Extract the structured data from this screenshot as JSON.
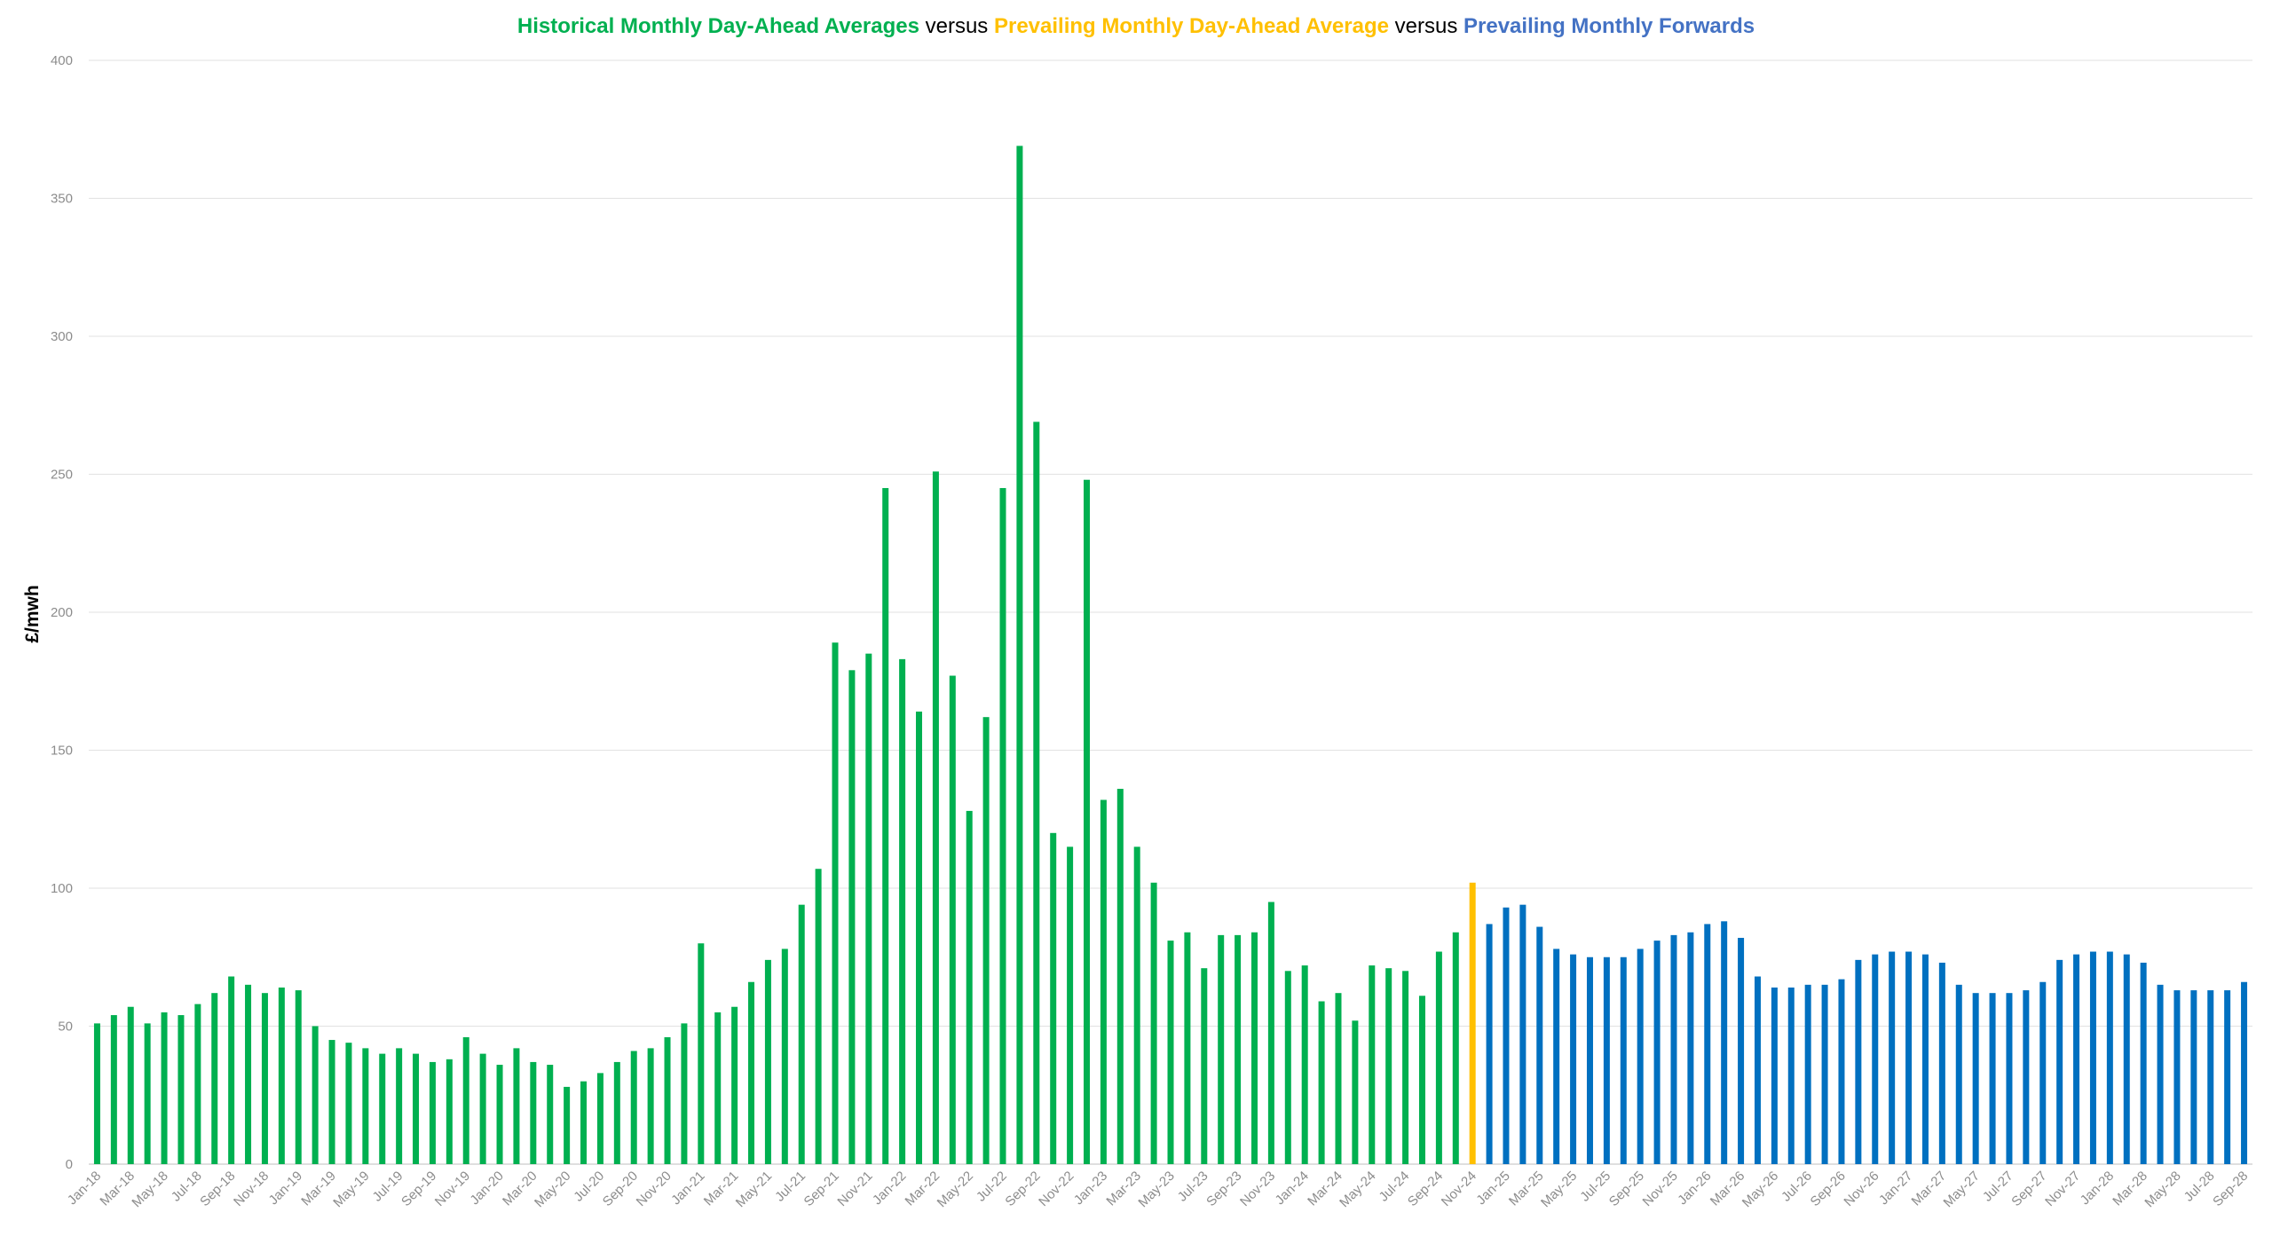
{
  "title": {
    "part1": "Historical Monthly Day-Ahead Averages",
    "sep1": " versus ",
    "part2": "Prevailing Monthly Day-Ahead Average",
    "sep2": " versus ",
    "part3": "Prevailing Monthly Forwards"
  },
  "colors": {
    "historical": "#00b050",
    "prevailing": "#ffc000",
    "forwards": "#0070c0",
    "title_sep": "#000000",
    "grid": "#e2e2e2",
    "axis_text": "#8c8c8c"
  },
  "chart_data": {
    "type": "bar",
    "ylabel": "£/mwh",
    "ylim": [
      0,
      400
    ],
    "yticks": [
      0,
      50,
      100,
      150,
      200,
      250,
      300,
      350,
      400
    ],
    "grid": true,
    "start_month": "Jan-18",
    "x_tick_labels": [
      "Jan-18",
      "Mar-18",
      "May-18",
      "Jul-18",
      "Sep-18",
      "Nov-18",
      "Jan-19",
      "Mar-19",
      "May-19",
      "Jul-19",
      "Sep-19",
      "Nov-19",
      "Jan-20",
      "Mar-20",
      "May-20",
      "Jul-20",
      "Sep-20",
      "Nov-20",
      "Jan-21",
      "Mar-21",
      "May-21",
      "Jul-21",
      "Sep-21",
      "Nov-21",
      "Jan-22",
      "Mar-22",
      "May-22",
      "Jul-22",
      "Sep-22",
      "Nov-22",
      "Jan-23",
      "Mar-23",
      "May-23",
      "Jul-23",
      "Sep-23",
      "Nov-23",
      "Jan-24",
      "Mar-24",
      "May-24",
      "Jul-24",
      "Sep-24",
      "Nov-24",
      "Jan-25",
      "Mar-25",
      "May-25",
      "Jul-25",
      "Sep-25",
      "Nov-25",
      "Jan-26",
      "Mar-26",
      "May-26",
      "Jul-26",
      "Sep-26",
      "Nov-26",
      "Jan-27",
      "Mar-27",
      "May-27",
      "Jul-27",
      "Sep-27",
      "Nov-27",
      "Jan-28",
      "Mar-28",
      "May-28",
      "Jul-28",
      "Sep-28"
    ],
    "series": [
      {
        "name": "Historical Monthly Day-Ahead Averages",
        "start_month": "Jan-18",
        "values": [
          51,
          54,
          57,
          51,
          55,
          54,
          58,
          62,
          68,
          65,
          62,
          64,
          63,
          50,
          45,
          44,
          42,
          40,
          42,
          40,
          37,
          38,
          46,
          40,
          36,
          42,
          37,
          36,
          28,
          30,
          33,
          37,
          41,
          42,
          46,
          51,
          80,
          55,
          57,
          66,
          74,
          78,
          94,
          107,
          189,
          179,
          185,
          245,
          183,
          164,
          251,
          177,
          128,
          162,
          245,
          369,
          269,
          120,
          115,
          248,
          132,
          136,
          115,
          102,
          81,
          84,
          71,
          83,
          83,
          84,
          95,
          70,
          72,
          59,
          62,
          52,
          72,
          71,
          70,
          61,
          77,
          84
        ]
      },
      {
        "name": "Prevailing Monthly Day-Ahead Average",
        "start_month": "Nov-24",
        "values": [
          102
        ]
      },
      {
        "name": "Prevailing Monthly Forwards",
        "start_month": "Dec-24",
        "values": [
          87,
          93,
          94,
          86,
          78,
          76,
          75,
          75,
          75,
          78,
          81,
          83,
          84,
          87,
          88,
          82,
          68,
          64,
          64,
          65,
          65,
          67,
          74,
          76,
          77,
          77,
          76,
          73,
          65,
          62,
          62,
          62,
          63,
          66,
          74,
          76,
          77,
          77,
          76,
          73,
          65,
          63,
          63,
          63,
          63,
          66
        ]
      }
    ]
  }
}
